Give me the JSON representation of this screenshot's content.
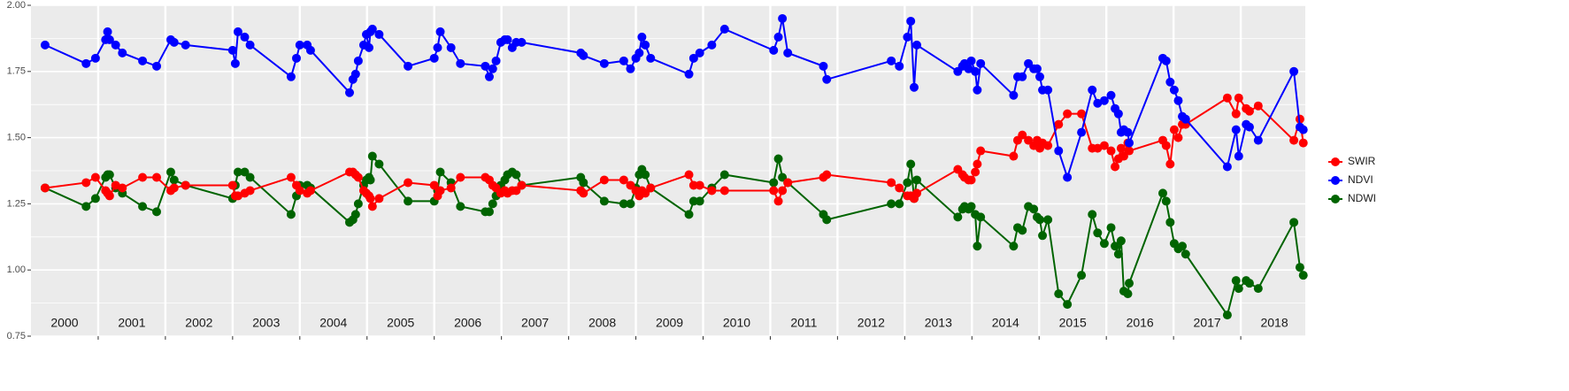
{
  "chart_data": {
    "type": "line",
    "x": [
      2000.21,
      2000.82,
      2000.96,
      2001.11,
      2001.14,
      2001.17,
      2001.26,
      2001.36,
      2001.66,
      2001.87,
      2002.08,
      2002.13,
      2002.3,
      2003.0,
      2003.04,
      2003.08,
      2003.18,
      2003.26,
      2003.87,
      2003.95,
      2004.0,
      2004.11,
      2004.16,
      2004.74,
      2004.79,
      2004.83,
      2004.87,
      2004.95,
      2004.99,
      2005.03,
      2005.05,
      2005.08,
      2005.18,
      2005.61,
      2006.0,
      2006.05,
      2006.09,
      2006.25,
      2006.39,
      2006.76,
      2006.82,
      2006.87,
      2006.92,
      2006.99,
      2007.05,
      2007.09,
      2007.16,
      2007.22,
      2007.3,
      2008.18,
      2008.22,
      2008.53,
      2008.82,
      2008.92,
      2009.0,
      2009.05,
      2009.09,
      2009.14,
      2009.22,
      2009.79,
      2009.86,
      2009.95,
      2010.13,
      2010.32,
      2011.05,
      2011.12,
      2011.18,
      2011.26,
      2011.79,
      2011.84,
      2012.8,
      2012.92,
      2013.04,
      2013.09,
      2013.14,
      2013.18,
      2013.79,
      2013.86,
      2013.89,
      2013.95,
      2013.99,
      2014.05,
      2014.08,
      2014.13,
      2014.62,
      2014.68,
      2014.75,
      2014.84,
      2014.92,
      2014.97,
      2015.01,
      2015.05,
      2015.13,
      2015.29,
      2015.42,
      2015.63,
      2015.79,
      2015.87,
      2015.97,
      2016.07,
      2016.13,
      2016.18,
      2016.22,
      2016.26,
      2016.32,
      2016.34,
      2016.84,
      2016.89,
      2016.95,
      2017.01,
      2017.07,
      2017.13,
      2017.18,
      2017.8,
      2017.93,
      2017.97,
      2018.08,
      2018.13,
      2018.26,
      2018.79,
      2018.88,
      2018.93
    ],
    "series": [
      {
        "name": "SWIR",
        "color": "#ff0000",
        "values": [
          1.31,
          1.33,
          1.35,
          1.3,
          1.29,
          1.28,
          1.32,
          1.31,
          1.35,
          1.35,
          1.3,
          1.31,
          1.32,
          1.32,
          1.28,
          1.28,
          1.29,
          1.3,
          1.35,
          1.32,
          1.3,
          1.29,
          1.3,
          1.37,
          1.37,
          1.36,
          1.35,
          1.3,
          1.29,
          1.28,
          1.27,
          1.24,
          1.27,
          1.33,
          1.32,
          1.28,
          1.3,
          1.31,
          1.35,
          1.35,
          1.34,
          1.32,
          1.31,
          1.29,
          1.3,
          1.29,
          1.3,
          1.3,
          1.32,
          1.3,
          1.29,
          1.34,
          1.34,
          1.32,
          1.3,
          1.28,
          1.3,
          1.29,
          1.31,
          1.36,
          1.32,
          1.32,
          1.3,
          1.3,
          1.3,
          1.26,
          1.3,
          1.33,
          1.35,
          1.36,
          1.33,
          1.31,
          1.28,
          1.28,
          1.27,
          1.29,
          1.38,
          1.36,
          1.35,
          1.34,
          1.34,
          1.37,
          1.4,
          1.45,
          1.43,
          1.49,
          1.51,
          1.49,
          1.47,
          1.49,
          1.46,
          1.48,
          1.47,
          1.55,
          1.59,
          1.59,
          1.46,
          1.46,
          1.47,
          1.45,
          1.39,
          1.42,
          1.46,
          1.43,
          1.48,
          1.45,
          1.49,
          1.47,
          1.4,
          1.53,
          1.5,
          1.55,
          1.55,
          1.65,
          1.59,
          1.65,
          1.61,
          1.6,
          1.62,
          1.49,
          1.57,
          1.48
        ]
      },
      {
        "name": "NDVI",
        "color": "#0000ff",
        "values": [
          1.85,
          1.78,
          1.8,
          1.87,
          1.9,
          1.87,
          1.85,
          1.82,
          1.79,
          1.77,
          1.87,
          1.86,
          1.85,
          1.83,
          1.78,
          1.9,
          1.88,
          1.85,
          1.73,
          1.8,
          1.85,
          1.85,
          1.83,
          1.67,
          1.72,
          1.74,
          1.79,
          1.85,
          1.89,
          1.84,
          1.9,
          1.91,
          1.89,
          1.77,
          1.8,
          1.84,
          1.9,
          1.84,
          1.78,
          1.77,
          1.73,
          1.76,
          1.79,
          1.86,
          1.87,
          1.87,
          1.84,
          1.86,
          1.86,
          1.82,
          1.81,
          1.78,
          1.79,
          1.76,
          1.8,
          1.82,
          1.88,
          1.85,
          1.8,
          1.74,
          1.8,
          1.82,
          1.85,
          1.91,
          1.83,
          1.88,
          1.95,
          1.82,
          1.77,
          1.72,
          1.79,
          1.77,
          1.88,
          1.94,
          1.69,
          1.85,
          1.75,
          1.77,
          1.78,
          1.76,
          1.79,
          1.75,
          1.68,
          1.78,
          1.66,
          1.73,
          1.73,
          1.78,
          1.76,
          1.76,
          1.73,
          1.68,
          1.68,
          1.45,
          1.35,
          1.52,
          1.68,
          1.63,
          1.64,
          1.66,
          1.61,
          1.59,
          1.52,
          1.53,
          1.52,
          1.48,
          1.8,
          1.79,
          1.71,
          1.68,
          1.64,
          1.58,
          1.57,
          1.39,
          1.53,
          1.43,
          1.55,
          1.54,
          1.49,
          1.75,
          1.54,
          1.53
        ]
      },
      {
        "name": "NDWI",
        "color": "#006400",
        "values": [
          1.31,
          1.24,
          1.27,
          1.35,
          1.36,
          1.36,
          1.31,
          1.29,
          1.24,
          1.22,
          1.37,
          1.34,
          1.32,
          1.27,
          1.32,
          1.37,
          1.37,
          1.35,
          1.21,
          1.28,
          1.32,
          1.32,
          1.31,
          1.18,
          1.19,
          1.21,
          1.25,
          1.32,
          1.34,
          1.35,
          1.34,
          1.43,
          1.4,
          1.26,
          1.26,
          1.3,
          1.37,
          1.33,
          1.24,
          1.22,
          1.22,
          1.25,
          1.28,
          1.32,
          1.34,
          1.36,
          1.37,
          1.36,
          1.32,
          1.35,
          1.33,
          1.26,
          1.25,
          1.25,
          1.31,
          1.36,
          1.38,
          1.36,
          1.31,
          1.21,
          1.26,
          1.26,
          1.31,
          1.36,
          1.33,
          1.42,
          1.35,
          1.33,
          1.21,
          1.19,
          1.25,
          1.25,
          1.33,
          1.4,
          1.27,
          1.34,
          1.2,
          1.23,
          1.24,
          1.23,
          1.24,
          1.21,
          1.09,
          1.2,
          1.09,
          1.16,
          1.15,
          1.24,
          1.23,
          1.2,
          1.19,
          1.13,
          1.19,
          0.91,
          0.87,
          0.98,
          1.21,
          1.14,
          1.1,
          1.16,
          1.09,
          1.06,
          1.11,
          0.92,
          0.91,
          0.95,
          1.29,
          1.26,
          1.18,
          1.1,
          1.08,
          1.09,
          1.06,
          0.83,
          0.96,
          0.93,
          0.96,
          0.95,
          0.93,
          1.18,
          1.01,
          0.98
        ]
      }
    ],
    "xlim": [
      2000,
      2018.96
    ],
    "xticks": [
      2001,
      2002,
      2003,
      2004,
      2005,
      2006,
      2007,
      2008,
      2009,
      2010,
      2011,
      2012,
      2013,
      2014,
      2015,
      2016,
      2017,
      2018
    ],
    "year_labels": [
      2000,
      2001,
      2002,
      2003,
      2004,
      2005,
      2006,
      2007,
      2008,
      2009,
      2010,
      2011,
      2012,
      2013,
      2014,
      2015,
      2016,
      2017,
      2018
    ],
    "ylim": [
      0.75,
      2.0
    ],
    "yticks": [
      {
        "value": 0.75,
        "label": "0.75"
      },
      {
        "value": 1.0,
        "label": "1.00"
      },
      {
        "value": 1.25,
        "label": "1.25"
      },
      {
        "value": 1.5,
        "label": "1.50"
      },
      {
        "value": 1.75,
        "label": "1.75"
      },
      {
        "value": 2.0,
        "label": "2.00"
      }
    ],
    "grid": true,
    "legend": "right",
    "background": "#ebebeb"
  }
}
